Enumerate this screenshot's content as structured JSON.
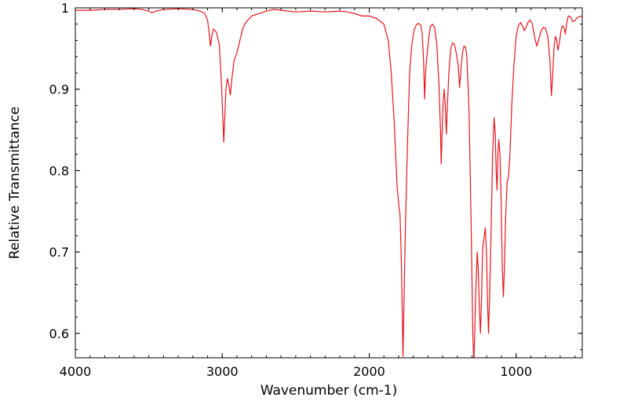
{
  "chart_data": {
    "type": "line",
    "title": "",
    "xlabel": "Wavenumber (cm-1)",
    "ylabel": "Relative Transmittance",
    "xlim": [
      4000,
      550
    ],
    "ylim": [
      0.57,
      1.0
    ],
    "x_reversed": true,
    "grid": false,
    "legend": "none",
    "x_ticks": [
      {
        "value": 4000,
        "label": "4000"
      },
      {
        "value": 3000,
        "label": "3000"
      },
      {
        "value": 2000,
        "label": "2000"
      },
      {
        "value": 1000,
        "label": "1000"
      }
    ],
    "x_minor_step": 100,
    "y_ticks": [
      {
        "value": 1.0,
        "label": "1"
      },
      {
        "value": 0.9,
        "label": "0.9"
      },
      {
        "value": 0.8,
        "label": "0.8"
      },
      {
        "value": 0.7,
        "label": "0.7"
      },
      {
        "value": 0.6,
        "label": "0.6"
      }
    ],
    "y_minor_step": 0.02,
    "line_color": "#e8141c",
    "series": [
      {
        "points": [
          [
            4000,
            0.997
          ],
          [
            3900,
            0.997
          ],
          [
            3800,
            0.998
          ],
          [
            3700,
            0.998
          ],
          [
            3600,
            0.999
          ],
          [
            3550,
            0.998
          ],
          [
            3500,
            0.996
          ],
          [
            3480,
            0.994
          ],
          [
            3450,
            0.996
          ],
          [
            3400,
            0.998
          ],
          [
            3300,
            0.999
          ],
          [
            3200,
            0.998
          ],
          [
            3150,
            0.996
          ],
          [
            3120,
            0.993
          ],
          [
            3100,
            0.985
          ],
          [
            3090,
            0.97
          ],
          [
            3080,
            0.953
          ],
          [
            3070,
            0.967
          ],
          [
            3060,
            0.974
          ],
          [
            3040,
            0.97
          ],
          [
            3020,
            0.955
          ],
          [
            3005,
            0.905
          ],
          [
            2995,
            0.86
          ],
          [
            2990,
            0.835
          ],
          [
            2985,
            0.855
          ],
          [
            2975,
            0.9
          ],
          [
            2965,
            0.913
          ],
          [
            2955,
            0.905
          ],
          [
            2945,
            0.893
          ],
          [
            2935,
            0.912
          ],
          [
            2920,
            0.935
          ],
          [
            2900,
            0.945
          ],
          [
            2880,
            0.96
          ],
          [
            2860,
            0.975
          ],
          [
            2840,
            0.982
          ],
          [
            2800,
            0.99
          ],
          [
            2750,
            0.993
          ],
          [
            2700,
            0.996
          ],
          [
            2650,
            0.998
          ],
          [
            2600,
            0.997
          ],
          [
            2500,
            0.995
          ],
          [
            2400,
            0.996
          ],
          [
            2300,
            0.995
          ],
          [
            2200,
            0.996
          ],
          [
            2150,
            0.995
          ],
          [
            2100,
            0.993
          ],
          [
            2050,
            0.99
          ],
          [
            2000,
            0.99
          ],
          [
            1950,
            0.987
          ],
          [
            1900,
            0.98
          ],
          [
            1870,
            0.96
          ],
          [
            1850,
            0.92
          ],
          [
            1830,
            0.86
          ],
          [
            1810,
            0.78
          ],
          [
            1800,
            0.76
          ],
          [
            1790,
            0.745
          ],
          [
            1780,
            0.68
          ],
          [
            1775,
            0.625
          ],
          [
            1770,
            0.572
          ],
          [
            1765,
            0.62
          ],
          [
            1755,
            0.72
          ],
          [
            1740,
            0.83
          ],
          [
            1725,
            0.92
          ],
          [
            1710,
            0.955
          ],
          [
            1695,
            0.972
          ],
          [
            1680,
            0.979
          ],
          [
            1665,
            0.981
          ],
          [
            1650,
            0.979
          ],
          [
            1640,
            0.97
          ],
          [
            1630,
            0.935
          ],
          [
            1623,
            0.888
          ],
          [
            1615,
            0.925
          ],
          [
            1605,
            0.945
          ],
          [
            1595,
            0.962
          ],
          [
            1585,
            0.976
          ],
          [
            1570,
            0.98
          ],
          [
            1555,
            0.976
          ],
          [
            1540,
            0.955
          ],
          [
            1525,
            0.905
          ],
          [
            1515,
            0.85
          ],
          [
            1510,
            0.808
          ],
          [
            1505,
            0.84
          ],
          [
            1498,
            0.88
          ],
          [
            1490,
            0.9
          ],
          [
            1482,
            0.88
          ],
          [
            1475,
            0.845
          ],
          [
            1468,
            0.88
          ],
          [
            1458,
            0.92
          ],
          [
            1445,
            0.95
          ],
          [
            1432,
            0.957
          ],
          [
            1420,
            0.955
          ],
          [
            1408,
            0.945
          ],
          [
            1395,
            0.93
          ],
          [
            1385,
            0.902
          ],
          [
            1375,
            0.925
          ],
          [
            1365,
            0.945
          ],
          [
            1355,
            0.953
          ],
          [
            1345,
            0.952
          ],
          [
            1335,
            0.94
          ],
          [
            1320,
            0.87
          ],
          [
            1305,
            0.72
          ],
          [
            1295,
            0.6
          ],
          [
            1288,
            0.565
          ],
          [
            1282,
            0.6
          ],
          [
            1275,
            0.65
          ],
          [
            1265,
            0.7
          ],
          [
            1258,
            0.68
          ],
          [
            1250,
            0.63
          ],
          [
            1243,
            0.6
          ],
          [
            1236,
            0.64
          ],
          [
            1228,
            0.705
          ],
          [
            1218,
            0.718
          ],
          [
            1210,
            0.73
          ],
          [
            1202,
            0.7
          ],
          [
            1195,
            0.64
          ],
          [
            1188,
            0.6
          ],
          [
            1180,
            0.65
          ],
          [
            1170,
            0.73
          ],
          [
            1160,
            0.82
          ],
          [
            1150,
            0.865
          ],
          [
            1142,
            0.845
          ],
          [
            1136,
            0.8
          ],
          [
            1130,
            0.776
          ],
          [
            1124,
            0.82
          ],
          [
            1118,
            0.838
          ],
          [
            1110,
            0.82
          ],
          [
            1102,
            0.76
          ],
          [
            1094,
            0.68
          ],
          [
            1087,
            0.645
          ],
          [
            1080,
            0.68
          ],
          [
            1072,
            0.74
          ],
          [
            1062,
            0.785
          ],
          [
            1052,
            0.793
          ],
          [
            1042,
            0.82
          ],
          [
            1030,
            0.88
          ],
          [
            1015,
            0.93
          ],
          [
            1000,
            0.965
          ],
          [
            985,
            0.978
          ],
          [
            970,
            0.982
          ],
          [
            955,
            0.977
          ],
          [
            945,
            0.972
          ],
          [
            935,
            0.975
          ],
          [
            920,
            0.982
          ],
          [
            905,
            0.985
          ],
          [
            890,
            0.98
          ],
          [
            875,
            0.965
          ],
          [
            860,
            0.953
          ],
          [
            845,
            0.962
          ],
          [
            830,
            0.972
          ],
          [
            815,
            0.976
          ],
          [
            800,
            0.975
          ],
          [
            785,
            0.965
          ],
          [
            770,
            0.935
          ],
          [
            760,
            0.892
          ],
          [
            752,
            0.915
          ],
          [
            742,
            0.952
          ],
          [
            733,
            0.965
          ],
          [
            724,
            0.96
          ],
          [
            715,
            0.948
          ],
          [
            705,
            0.958
          ],
          [
            695,
            0.972
          ],
          [
            685,
            0.978
          ],
          [
            675,
            0.976
          ],
          [
            665,
            0.968
          ],
          [
            657,
            0.98
          ],
          [
            645,
            0.99
          ],
          [
            630,
            0.989
          ],
          [
            615,
            0.983
          ],
          [
            600,
            0.984
          ],
          [
            585,
            0.988
          ],
          [
            570,
            0.989
          ],
          [
            550,
            0.99
          ]
        ]
      }
    ]
  }
}
